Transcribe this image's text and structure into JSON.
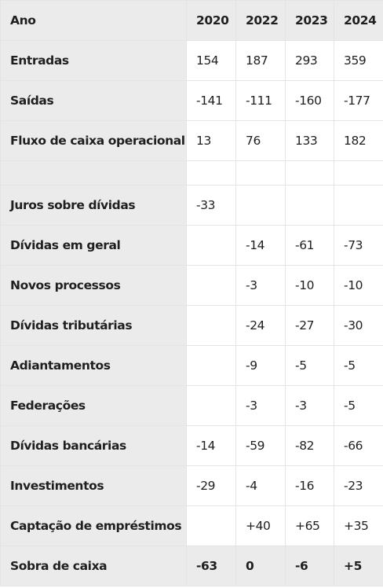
{
  "header": {
    "label": "Ano",
    "years": [
      "2020",
      "2022",
      "2023",
      "2024"
    ]
  },
  "rows": [
    {
      "label": "Entradas",
      "values": [
        "154",
        "187",
        "293",
        "359"
      ]
    },
    {
      "label": "Saídas",
      "values": [
        "-141",
        "-111",
        "-160",
        "-177"
      ]
    },
    {
      "label": "Fluxo de caixa operacional",
      "values": [
        "13",
        "76",
        "133",
        "182"
      ]
    },
    {
      "label": "",
      "values": [
        "",
        "",
        "",
        ""
      ]
    },
    {
      "label": "Juros sobre dívidas",
      "values": [
        "-33",
        "",
        "",
        ""
      ]
    },
    {
      "label": "Dívidas em geral",
      "values": [
        "",
        "-14",
        "-61",
        "-73"
      ]
    },
    {
      "label": "Novos processos",
      "values": [
        "",
        "-3",
        "-10",
        "-10"
      ]
    },
    {
      "label": "Dívidas tributárias",
      "values": [
        "",
        "-24",
        "-27",
        "-30"
      ]
    },
    {
      "label": "Adiantamentos",
      "values": [
        "",
        "-9",
        "-5",
        "-5"
      ]
    },
    {
      "label": "Federações",
      "values": [
        "",
        "-3",
        "-3",
        "-5"
      ]
    },
    {
      "label": "Dívidas bancárias",
      "values": [
        "-14",
        "-59",
        "-82",
        "-66"
      ]
    },
    {
      "label": "Investimentos",
      "values": [
        "-29",
        "-4",
        "-16",
        "-23"
      ]
    },
    {
      "label": "Captação de empréstimos",
      "values": [
        "",
        "+40",
        "+65",
        "+35"
      ]
    }
  ],
  "total": {
    "label": "Sobra de caixa",
    "values": [
      "-63",
      "0",
      "-6",
      "+5"
    ]
  }
}
